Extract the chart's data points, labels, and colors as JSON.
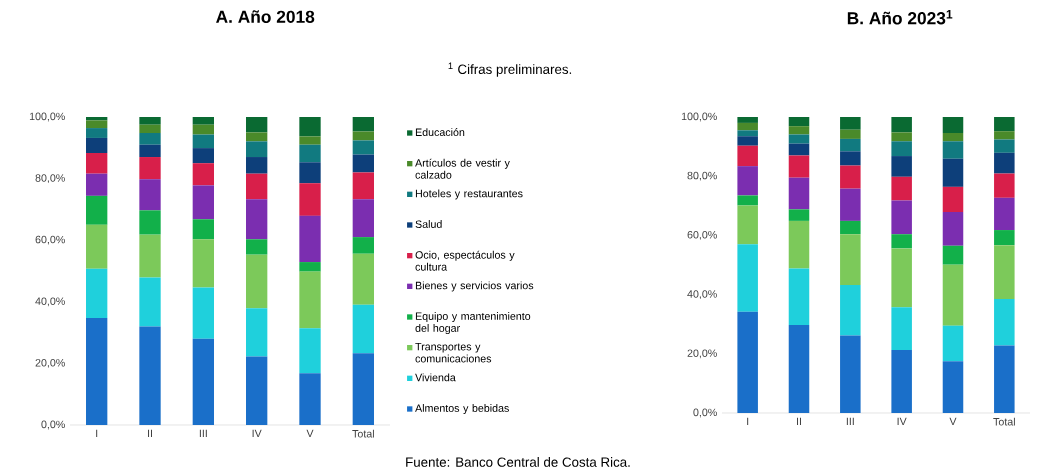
{
  "chart_data": [
    {
      "type": "bar",
      "stacked": true,
      "title": "A. Año 2018",
      "categories": [
        "I",
        "II",
        "III",
        "IV",
        "V",
        "Total"
      ],
      "ylim": [
        0,
        100
      ],
      "yticks": [
        {
          "value": 0,
          "label": "0,0%"
        },
        {
          "value": 20,
          "label": "20,0%"
        },
        {
          "value": 40,
          "label": "40,0%"
        },
        {
          "value": 60,
          "label": "60,0%"
        },
        {
          "value": 80,
          "label": "80,0%"
        },
        {
          "value": 100,
          "label": "100,0%"
        }
      ],
      "legend": "right",
      "annotations": [
        "Fuente: Banco Central de Costa Rica."
      ],
      "series": [
        {
          "name": "Almentos y bebidas",
          "color": "#1a6fc9",
          "values": [
            34.7,
            32.0,
            28.0,
            22.2,
            16.8,
            23.3
          ]
        },
        {
          "name": "Vivienda",
          "color": "#1fd0dc",
          "values": [
            16.0,
            15.9,
            16.6,
            15.7,
            14.6,
            15.7
          ]
        },
        {
          "name": "Transportes y comunicaciones",
          "color": "#7cc95a",
          "values": [
            14.3,
            13.9,
            15.7,
            17.4,
            18.4,
            16.6
          ]
        },
        {
          "name": "Equipo y mantenimiento del hogar",
          "color": "#12b04a",
          "values": [
            9.4,
            7.9,
            6.5,
            5.0,
            3.1,
            5.4
          ]
        },
        {
          "name": "Bienes y servicios varios",
          "color": "#7b2eb0",
          "values": [
            7.2,
            10.1,
            11.0,
            13.0,
            15.0,
            12.3
          ]
        },
        {
          "name": "Ocio, espectáculos y cultura",
          "color": "#d81f4a",
          "values": [
            6.7,
            7.2,
            7.2,
            8.3,
            10.6,
            8.7
          ]
        },
        {
          "name": "Salud",
          "color": "#0d3f7a",
          "values": [
            4.9,
            4.0,
            4.9,
            5.4,
            6.8,
            5.8
          ]
        },
        {
          "name": "Hoteles y restaurantes",
          "color": "#117a80",
          "values": [
            3.2,
            3.8,
            4.4,
            5.1,
            5.7,
            4.6
          ]
        },
        {
          "name": "Artículos de vestir y calzado",
          "color": "#4a8a2a",
          "values": [
            2.5,
            2.7,
            3.2,
            2.9,
            2.7,
            2.9
          ]
        },
        {
          "name": "Educación",
          "color": "#0a6a32",
          "values": [
            1.1,
            2.5,
            2.5,
            5.0,
            6.3,
            4.7
          ]
        }
      ]
    },
    {
      "type": "bar",
      "stacked": true,
      "title": "B. Año 2023$^{1}$",
      "categories": [
        "I",
        "II",
        "III",
        "IV",
        "V",
        "Total"
      ],
      "ylim": [
        0,
        100
      ],
      "yticks": [
        {
          "value": 0,
          "label": "0,0%"
        },
        {
          "value": 20,
          "label": "20,0%"
        },
        {
          "value": 40,
          "label": "40,0%"
        },
        {
          "value": 60,
          "label": "60,0%"
        },
        {
          "value": 80,
          "label": "80,0%"
        },
        {
          "value": 100,
          "label": "100,0%"
        }
      ],
      "annotations": [
        "$^{1}$ Cifras preliminares."
      ],
      "series": [
        {
          "color": "#1a6fc9",
          "values": [
            34.2,
            29.7,
            26.2,
            21.3,
            17.5,
            22.8
          ]
        },
        {
          "color": "#1fd0dc",
          "values": [
            22.8,
            19.1,
            17.0,
            14.4,
            12.0,
            15.7
          ]
        },
        {
          "color": "#7cc95a",
          "values": [
            13.1,
            16.1,
            17.2,
            19.9,
            20.6,
            18.2
          ]
        },
        {
          "color": "#12b04a",
          "values": [
            3.4,
            3.9,
            4.5,
            4.8,
            6.4,
            5.1
          ]
        },
        {
          "color": "#7b2eb0",
          "values": [
            9.9,
            10.7,
            10.9,
            11.4,
            11.4,
            10.9
          ]
        },
        {
          "color": "#d81f4a",
          "values": [
            6.9,
            7.5,
            7.8,
            8.0,
            8.5,
            8.2
          ]
        },
        {
          "color": "#0d3f7a",
          "values": [
            3.2,
            4.0,
            4.8,
            7.0,
            9.5,
            7.0
          ]
        },
        {
          "color": "#117a80",
          "values": [
            2.0,
            3.1,
            4.2,
            5.0,
            5.9,
            4.5
          ]
        },
        {
          "color": "#4a8a2a",
          "values": [
            2.5,
            2.8,
            3.1,
            3.0,
            2.8,
            2.8
          ]
        },
        {
          "color": "#0a6a32",
          "values": [
            2.0,
            3.1,
            4.3,
            5.2,
            5.4,
            4.8
          ]
        }
      ]
    }
  ]
}
